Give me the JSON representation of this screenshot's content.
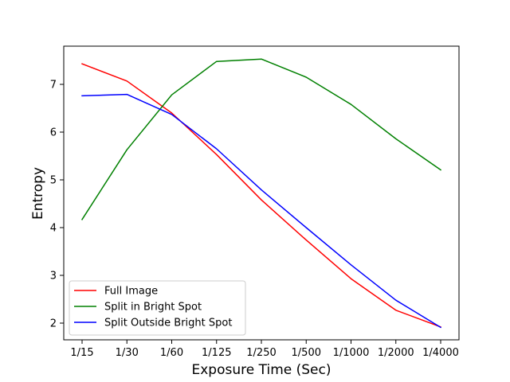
{
  "chart_data": {
    "type": "line",
    "title": "",
    "xlabel": "Exposure Time (Sec)",
    "ylabel": "Entropy",
    "categories": [
      "1/15",
      "1/30",
      "1/60",
      "1/125",
      "1/250",
      "1/500",
      "1/1000",
      "1/2000",
      "1/4000"
    ],
    "yticks": [
      "2",
      "3",
      "4",
      "5",
      "6",
      "7"
    ],
    "ylim": [
      1.65,
      7.8
    ],
    "grid": false,
    "legend_position": "lower-left",
    "series": [
      {
        "name": "Full Image",
        "color": "#ff0000",
        "values": [
          7.43,
          7.07,
          6.4,
          5.53,
          4.58,
          3.74,
          2.93,
          2.27,
          1.92
        ]
      },
      {
        "name": "Split in Bright Spot",
        "color": "#008000",
        "values": [
          4.17,
          5.63,
          6.78,
          7.48,
          7.53,
          7.15,
          6.58,
          5.86,
          5.21
        ]
      },
      {
        "name": "Split Outside Bright Spot",
        "color": "#0000ff",
        "values": [
          6.76,
          6.79,
          6.37,
          5.65,
          4.79,
          4.0,
          3.22,
          2.48,
          1.91
        ]
      }
    ]
  }
}
